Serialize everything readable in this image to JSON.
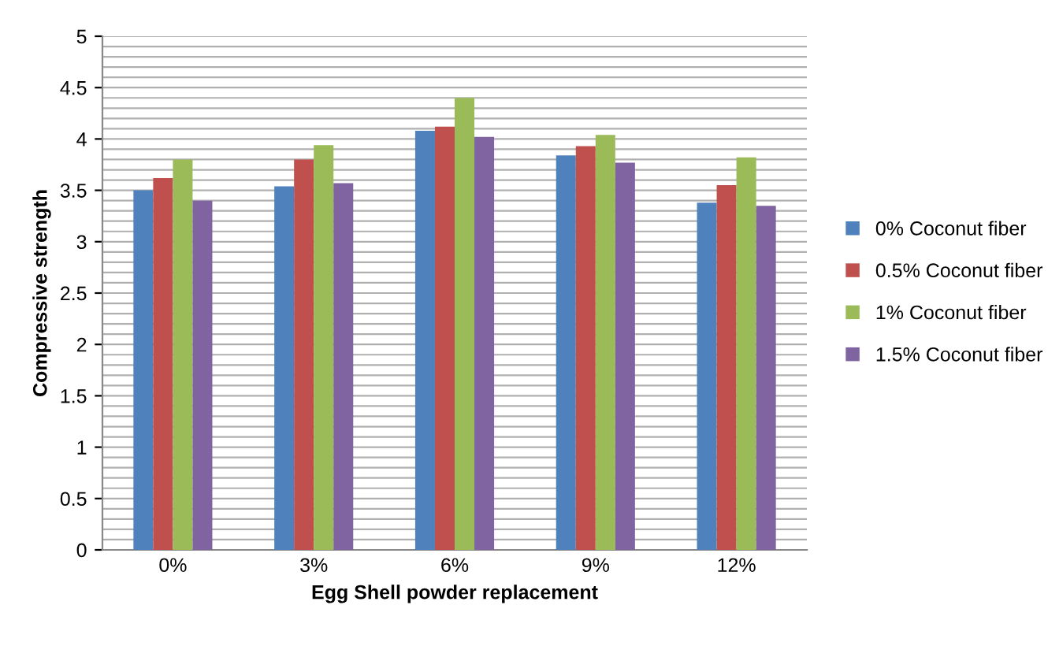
{
  "chart_data": {
    "type": "bar",
    "xlabel": "Egg Shell powder replacement",
    "ylabel": "Compressive strength",
    "categories": [
      "0%",
      "3%",
      "6%",
      "9%",
      "12%"
    ],
    "series": [
      {
        "name": "0% Coconut fiber",
        "color": "#4f81bd",
        "values": [
          3.5,
          3.54,
          4.08,
          3.84,
          3.38
        ]
      },
      {
        "name": "0.5% Coconut fiber",
        "color": "#c0504d",
        "values": [
          3.62,
          3.8,
          4.12,
          3.93,
          3.55
        ]
      },
      {
        "name": "1% Coconut fiber",
        "color": "#9bbb59",
        "values": [
          3.8,
          3.94,
          4.4,
          4.04,
          3.82
        ]
      },
      {
        "name": "1.5% Coconut fiber",
        "color": "#8064a2",
        "values": [
          3.4,
          3.57,
          4.02,
          3.77,
          3.35
        ]
      }
    ],
    "ylim": [
      0,
      5
    ],
    "yticks": [
      0,
      {
        "value": 0.1,
        "label": null
      },
      {
        "value": 0.2,
        "label": null
      },
      {
        "value": 0.3,
        "label": null
      },
      {
        "value": 0.4,
        "label": null
      },
      0.5,
      {
        "value": 0.6,
        "label": null
      },
      {
        "value": 0.7,
        "label": null
      },
      {
        "value": 0.8,
        "label": null
      },
      {
        "value": 0.9,
        "label": null
      },
      1,
      {
        "value": 1.1,
        "label": null
      },
      {
        "value": 1.2,
        "label": null
      },
      {
        "value": 1.3,
        "label": null
      },
      {
        "value": 1.4,
        "label": null
      },
      1.5,
      {
        "value": 1.6,
        "label": null
      },
      {
        "value": 1.7,
        "label": null
      },
      {
        "value": 1.8,
        "label": null
      },
      {
        "value": 1.9,
        "label": null
      },
      2,
      {
        "value": 2.1,
        "label": null
      },
      {
        "value": 2.2,
        "label": null
      },
      {
        "value": 2.3,
        "label": null
      },
      {
        "value": 2.4,
        "label": null
      },
      2.5,
      {
        "value": 2.6,
        "label": null
      },
      {
        "value": 2.7,
        "label": null
      },
      {
        "value": 2.8,
        "label": null
      },
      {
        "value": 2.9,
        "label": null
      },
      3,
      {
        "value": 3.1,
        "label": null
      },
      {
        "value": 3.2,
        "label": null
      },
      {
        "value": 3.3,
        "label": null
      },
      {
        "value": 3.4,
        "label": null
      },
      3.5,
      {
        "value": 3.6,
        "label": null
      },
      {
        "value": 3.7,
        "label": null
      },
      {
        "value": 3.8,
        "label": null
      },
      {
        "value": 3.9,
        "label": null
      },
      4,
      {
        "value": 4.1,
        "label": null
      },
      {
        "value": 4.2,
        "label": null
      },
      {
        "value": 4.3,
        "label": null
      },
      {
        "value": 4.4,
        "label": null
      },
      4.5,
      {
        "value": 4.6,
        "label": null
      },
      {
        "value": 4.7,
        "label": null
      },
      {
        "value": 4.8,
        "label": null
      },
      {
        "value": 4.9,
        "label": null
      },
      5
    ],
    "grid": "y",
    "legend": "right"
  }
}
